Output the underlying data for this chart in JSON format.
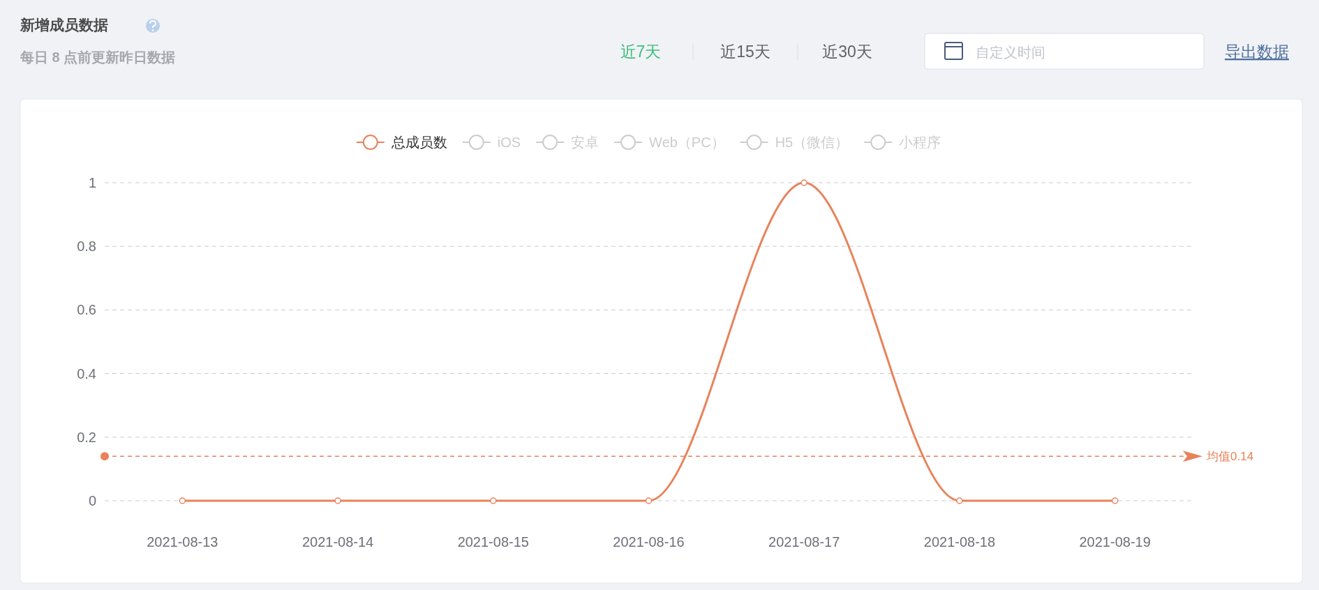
{
  "chart_data": {
    "type": "line",
    "title": "新增成员数据",
    "subtitle": "每日 8 点前更新昨日数据",
    "annotations": [
      "近7天",
      "近15天",
      "近30天",
      "自定义时间",
      "导出数据"
    ],
    "categories": [
      "2021-08-13",
      "2021-08-14",
      "2021-08-15",
      "2021-08-16",
      "2021-08-17",
      "2021-08-18",
      "2021-08-19"
    ],
    "series": [
      {
        "name": "总成员数",
        "color": "#e8825a",
        "values": [
          0,
          0,
          0,
          0,
          1,
          0,
          0
        ]
      },
      {
        "name": "iOS",
        "color": "#cccccc",
        "values": [
          null,
          null,
          null,
          null,
          null,
          null,
          null
        ]
      },
      {
        "name": "安卓",
        "color": "#cccccc",
        "values": [
          null,
          null,
          null,
          null,
          null,
          null,
          null
        ]
      },
      {
        "name": "Web（PC）",
        "color": "#cccccc",
        "values": [
          null,
          null,
          null,
          null,
          null,
          null,
          null
        ]
      },
      {
        "name": "H5（微信）",
        "color": "#cccccc",
        "values": [
          null,
          null,
          null,
          null,
          null,
          null,
          null
        ]
      },
      {
        "name": "小程序",
        "color": "#cccccc",
        "values": [
          null,
          null,
          null,
          null,
          null,
          null,
          null
        ]
      }
    ],
    "ylim": [
      0,
      1
    ],
    "yticks": [
      0,
      0.2,
      0.4,
      0.6,
      0.8,
      1
    ],
    "ref_lines": [
      {
        "axis": "y",
        "value": 0.14,
        "label": "均值0.14",
        "color": "#e8825a",
        "line_style": "dashed"
      }
    ],
    "grid": "y",
    "legend": "top",
    "marker": "circle",
    "line_style": "solid"
  }
}
